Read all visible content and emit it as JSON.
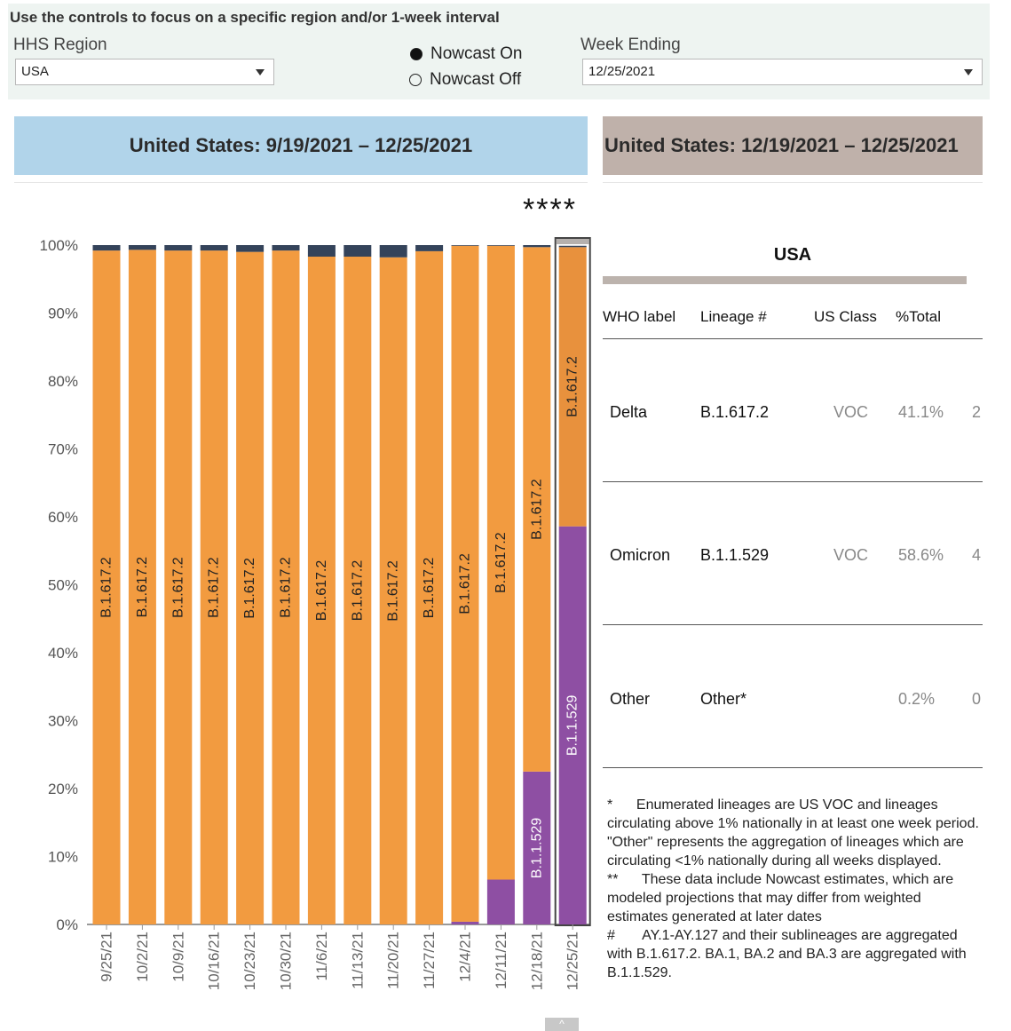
{
  "controls": {
    "title": "Use the controls to focus on a specific region and/or 1-week interval",
    "region_label": "HHS Region",
    "region_value": "USA",
    "nowcast_on": "Nowcast On",
    "nowcast_off": "Nowcast Off",
    "week_label": "Week Ending",
    "week_value": "12/25/2021"
  },
  "banners": {
    "left": "United States: 9/19/2021 – 12/25/2021",
    "right": "United States: 12/19/2021 – 12/25/2021"
  },
  "nowcast_marker": "****",
  "colors": {
    "delta": "#f29b40",
    "delta_selected": "#e8913d",
    "omicron": "#8e4fa3",
    "other": "#34435a",
    "banner_left": "#b1d4ea",
    "banner_right": "#bfb1aa"
  },
  "chart_data": {
    "type": "bar",
    "stacked": true,
    "categories": [
      "9/25/21",
      "10/2/21",
      "10/9/21",
      "10/16/21",
      "10/23/21",
      "10/30/21",
      "11/6/21",
      "11/13/21",
      "11/20/21",
      "11/27/21",
      "12/4/21",
      "12/11/21",
      "12/18/21",
      "12/25/21"
    ],
    "series": [
      {
        "name": "B.1.1.529",
        "values": [
          0,
          0,
          0,
          0,
          0,
          0,
          0,
          0,
          0,
          0,
          0.4,
          6.6,
          22.5,
          58.6
        ]
      },
      {
        "name": "B.1.617.2",
        "values": [
          99.2,
          99.3,
          99.2,
          99.2,
          99.0,
          99.2,
          98.3,
          98.3,
          98.2,
          99.1,
          99.5,
          93.3,
          77.2,
          41.1
        ]
      },
      {
        "name": "Other",
        "values": [
          0.8,
          0.7,
          0.8,
          0.8,
          1.0,
          0.8,
          1.7,
          1.7,
          1.8,
          0.9,
          0.1,
          0.1,
          0.3,
          0.2
        ]
      }
    ],
    "bar_labels": {
      "B.1.617.2": [
        "B.1.617.2",
        "B.1.617.2",
        "B.1.617.2",
        "B.1.617.2",
        "B.1.617.2",
        "B.1.617.2",
        "B.1.617.2",
        "B.1.617.2",
        "B.1.617.2",
        "B.1.617.2",
        "B.1.617.2",
        "B.1.617.2",
        "B.1.617.2",
        "B.1.617.2"
      ],
      "B.1.1.529": [
        "",
        "",
        "",
        "",
        "",
        "",
        "",
        "",
        "",
        "",
        "",
        "",
        "B.1.1.529",
        "B.1.1.529"
      ]
    },
    "highlighted_category": "12/25/21",
    "yticks": [
      "0%",
      "10%",
      "20%",
      "30%",
      "40%",
      "50%",
      "60%",
      "70%",
      "80%",
      "90%",
      "100%"
    ],
    "ylim": [
      0,
      100
    ]
  },
  "table": {
    "title": "USA",
    "headers": [
      "WHO label",
      "Lineage #",
      "US Class",
      "%Total"
    ],
    "rows": [
      {
        "who": "Delta",
        "lineage": "B.1.617.2",
        "us_class": "VOC",
        "pct": "41.1%",
        "extra": "2"
      },
      {
        "who": "Omicron",
        "lineage": "B.1.1.529",
        "us_class": "VOC",
        "pct": "58.6%",
        "extra": "4"
      },
      {
        "who": "Other",
        "lineage": "Other*",
        "us_class": "",
        "pct": "0.2%",
        "extra": "0"
      }
    ]
  },
  "notes": [
    "*      Enumerated lineages are US VOC and lineages circulating above 1% nationally in at least one week period. \"Other\" represents the aggregation of lineages which are circulating <1% nationally during all weeks displayed.",
    "**      These data include Nowcast estimates, which are modeled projections that may differ from weighted estimates generated at later dates",
    "#       AY.1-AY.127 and their sublineages are aggregated with B.1.617.2. BA.1, BA.2 and BA.3 are aggregated with B.1.1.529."
  ],
  "scroll_tab": "^"
}
